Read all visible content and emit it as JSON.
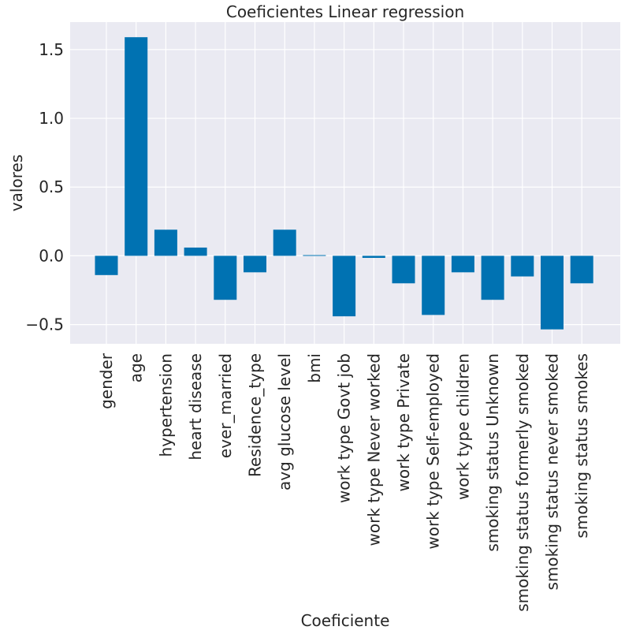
{
  "chart_data": {
    "type": "bar",
    "title": "Coeficientes Linear regression",
    "xlabel": "Coeficiente",
    "ylabel": "valores",
    "categories": [
      "gender",
      "age",
      "hypertension",
      "heart disease",
      "ever_married",
      "Residence_type",
      "avg glucose level",
      "bmi",
      "work type Govt job",
      "work type Never worked",
      "work type Private",
      "work type Self-employed",
      "work type children",
      "smoking status Unknown",
      "smoking status formerly smoked",
      "smoking status never smoked",
      "smoking status smokes"
    ],
    "values": [
      -0.14,
      1.59,
      0.19,
      0.06,
      -0.32,
      -0.12,
      0.19,
      0.005,
      -0.44,
      -0.015,
      -0.2,
      -0.43,
      -0.12,
      -0.32,
      -0.15,
      -0.535,
      -0.2
    ],
    "yticks": [
      -0.5,
      0.0,
      0.5,
      1.0,
      1.5
    ],
    "ytick_labels": [
      "−0.5",
      "0.0",
      "0.5",
      "1.0",
      "1.5"
    ],
    "ylim": [
      -0.64,
      1.7
    ],
    "grid": true,
    "colors": {
      "bar": "#0072b2",
      "background": "#eaeaf2",
      "grid": "#ffffff"
    }
  }
}
